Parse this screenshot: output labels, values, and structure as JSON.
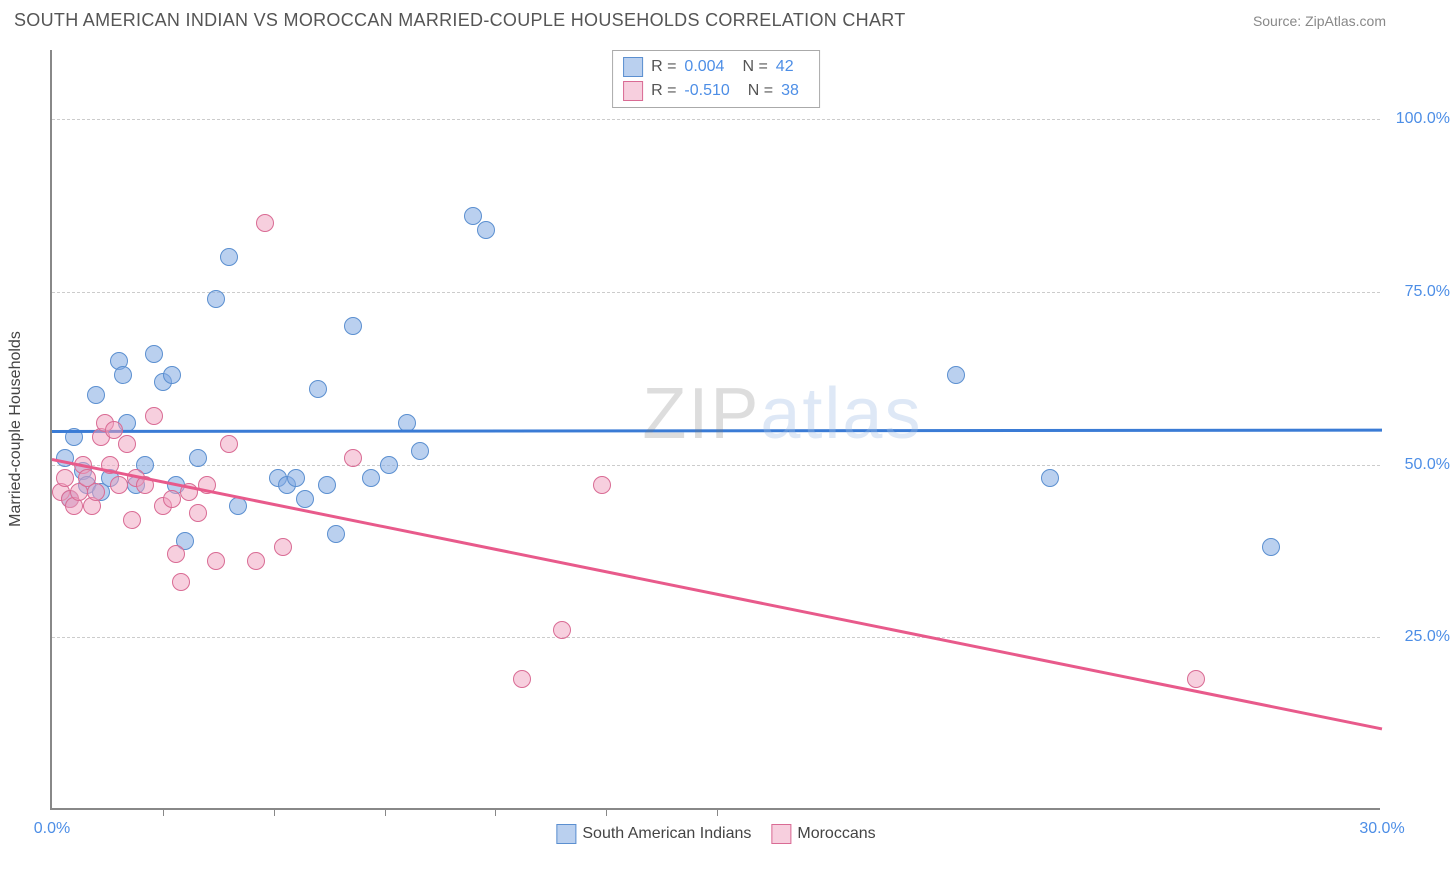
{
  "header": {
    "title": "SOUTH AMERICAN INDIAN VS MOROCCAN MARRIED-COUPLE HOUSEHOLDS CORRELATION CHART",
    "source": "Source: ZipAtlas.com"
  },
  "chart": {
    "type": "scatter",
    "background_color": "#ffffff",
    "axis_color": "#888888",
    "grid_color": "#cccccc",
    "tick_label_color": "#4d8ee6",
    "axis_label_color": "#444444",
    "ylabel": "Married-couple Households",
    "ylabel_fontsize": 16,
    "xlim": [
      0,
      30
    ],
    "ylim": [
      0,
      110
    ],
    "yticks": [
      {
        "value": 25,
        "label": "25.0%"
      },
      {
        "value": 50,
        "label": "50.0%"
      },
      {
        "value": 75,
        "label": "75.0%"
      },
      {
        "value": 100,
        "label": "100.0%"
      }
    ],
    "xticks": [
      {
        "value": 0,
        "label": "0.0%"
      },
      {
        "value": 2.5,
        "label": ""
      },
      {
        "value": 5,
        "label": ""
      },
      {
        "value": 7.5,
        "label": ""
      },
      {
        "value": 10,
        "label": ""
      },
      {
        "value": 12.5,
        "label": ""
      },
      {
        "value": 15,
        "label": ""
      },
      {
        "value": 30,
        "label": "30.0%"
      }
    ],
    "marker_radius": 9,
    "marker_border_width": 1,
    "line_width": 3,
    "watermark_text_1": "ZIP",
    "watermark_text_2": "atlas",
    "series": [
      {
        "name": "South American Indians",
        "fill_color": "rgba(130,170,225,0.55)",
        "border_color": "#5b8fd0",
        "line_color": "#3a7bd5",
        "R": "0.004",
        "N": "42",
        "trend": {
          "x1": 0,
          "y1": 55,
          "x2": 30,
          "y2": 55.2
        },
        "points": [
          {
            "x": 0.3,
            "y": 51
          },
          {
            "x": 0.4,
            "y": 45
          },
          {
            "x": 0.5,
            "y": 54
          },
          {
            "x": 0.7,
            "y": 49
          },
          {
            "x": 0.8,
            "y": 47
          },
          {
            "x": 1.0,
            "y": 60
          },
          {
            "x": 1.1,
            "y": 46
          },
          {
            "x": 1.3,
            "y": 48
          },
          {
            "x": 1.5,
            "y": 65
          },
          {
            "x": 1.6,
            "y": 63
          },
          {
            "x": 1.7,
            "y": 56
          },
          {
            "x": 1.9,
            "y": 47
          },
          {
            "x": 2.1,
            "y": 50
          },
          {
            "x": 2.3,
            "y": 66
          },
          {
            "x": 2.5,
            "y": 62
          },
          {
            "x": 2.7,
            "y": 63
          },
          {
            "x": 2.8,
            "y": 47
          },
          {
            "x": 3.0,
            "y": 39
          },
          {
            "x": 3.3,
            "y": 51
          },
          {
            "x": 3.7,
            "y": 74
          },
          {
            "x": 4.0,
            "y": 80
          },
          {
            "x": 4.2,
            "y": 44
          },
          {
            "x": 5.1,
            "y": 48
          },
          {
            "x": 5.3,
            "y": 47
          },
          {
            "x": 5.5,
            "y": 48
          },
          {
            "x": 5.7,
            "y": 45
          },
          {
            "x": 6.0,
            "y": 61
          },
          {
            "x": 6.2,
            "y": 47
          },
          {
            "x": 6.4,
            "y": 40
          },
          {
            "x": 6.8,
            "y": 70
          },
          {
            "x": 7.2,
            "y": 48
          },
          {
            "x": 7.6,
            "y": 50
          },
          {
            "x": 8.0,
            "y": 56
          },
          {
            "x": 8.3,
            "y": 52
          },
          {
            "x": 9.5,
            "y": 86
          },
          {
            "x": 9.8,
            "y": 84
          },
          {
            "x": 20.4,
            "y": 63
          },
          {
            "x": 22.5,
            "y": 48
          },
          {
            "x": 27.5,
            "y": 38
          }
        ]
      },
      {
        "name": "Moroccans",
        "fill_color": "rgba(240,160,190,0.5)",
        "border_color": "#d96b94",
        "line_color": "#e85a8b",
        "R": "-0.510",
        "N": "38",
        "trend": {
          "x1": 0,
          "y1": 51,
          "x2": 30,
          "y2": 12
        },
        "points": [
          {
            "x": 0.2,
            "y": 46
          },
          {
            "x": 0.3,
            "y": 48
          },
          {
            "x": 0.4,
            "y": 45
          },
          {
            "x": 0.5,
            "y": 44
          },
          {
            "x": 0.6,
            "y": 46
          },
          {
            "x": 0.7,
            "y": 50
          },
          {
            "x": 0.8,
            "y": 48
          },
          {
            "x": 0.9,
            "y": 44
          },
          {
            "x": 1.0,
            "y": 46
          },
          {
            "x": 1.1,
            "y": 54
          },
          {
            "x": 1.2,
            "y": 56
          },
          {
            "x": 1.3,
            "y": 50
          },
          {
            "x": 1.4,
            "y": 55
          },
          {
            "x": 1.5,
            "y": 47
          },
          {
            "x": 1.7,
            "y": 53
          },
          {
            "x": 1.8,
            "y": 42
          },
          {
            "x": 1.9,
            "y": 48
          },
          {
            "x": 2.1,
            "y": 47
          },
          {
            "x": 2.3,
            "y": 57
          },
          {
            "x": 2.5,
            "y": 44
          },
          {
            "x": 2.7,
            "y": 45
          },
          {
            "x": 2.8,
            "y": 37
          },
          {
            "x": 2.9,
            "y": 33
          },
          {
            "x": 3.1,
            "y": 46
          },
          {
            "x": 3.3,
            "y": 43
          },
          {
            "x": 3.5,
            "y": 47
          },
          {
            "x": 3.7,
            "y": 36
          },
          {
            "x": 4.0,
            "y": 53
          },
          {
            "x": 4.6,
            "y": 36
          },
          {
            "x": 4.8,
            "y": 85
          },
          {
            "x": 5.2,
            "y": 38
          },
          {
            "x": 6.8,
            "y": 51
          },
          {
            "x": 10.6,
            "y": 19
          },
          {
            "x": 11.5,
            "y": 26
          },
          {
            "x": 12.4,
            "y": 47
          },
          {
            "x": 25.8,
            "y": 19
          }
        ]
      }
    ]
  },
  "legend_top": {
    "rows": [
      {
        "series_idx": 0,
        "R_label": "R =",
        "N_label": "N ="
      },
      {
        "series_idx": 1,
        "R_label": "R =",
        "N_label": "N ="
      }
    ]
  },
  "legend_bottom": {
    "items": [
      {
        "series_idx": 0
      },
      {
        "series_idx": 1
      }
    ]
  }
}
